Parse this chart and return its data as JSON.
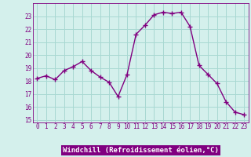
{
  "x": [
    0,
    1,
    2,
    3,
    4,
    5,
    6,
    7,
    8,
    9,
    10,
    11,
    12,
    13,
    14,
    15,
    16,
    17,
    18,
    19,
    20,
    21,
    22,
    23
  ],
  "y": [
    18.2,
    18.4,
    18.1,
    18.8,
    19.1,
    19.5,
    18.8,
    18.3,
    17.9,
    16.8,
    18.5,
    21.6,
    22.3,
    23.1,
    23.3,
    23.2,
    23.3,
    22.2,
    19.2,
    18.5,
    17.8,
    16.4,
    15.6,
    15.4
  ],
  "line_color": "#800080",
  "marker": "+",
  "markersize": 4,
  "linewidth": 1.0,
  "bg_color": "#d4f0ec",
  "grid_color": "#a8d8d2",
  "xlabel": "Windchill (Refroidissement éolien,°C)",
  "xlabel_bg": "#800080",
  "xlabel_fg": "#ffffff",
  "ylim": [
    14.8,
    24.0
  ],
  "yticks": [
    15,
    16,
    17,
    18,
    19,
    20,
    21,
    22,
    23
  ],
  "xticks": [
    0,
    1,
    2,
    3,
    4,
    5,
    6,
    7,
    8,
    9,
    10,
    11,
    12,
    13,
    14,
    15,
    16,
    17,
    18,
    19,
    20,
    21,
    22,
    23
  ],
  "tick_fontsize": 5.5,
  "xlabel_fontsize": 6.5,
  "markeredgewidth": 1.0
}
